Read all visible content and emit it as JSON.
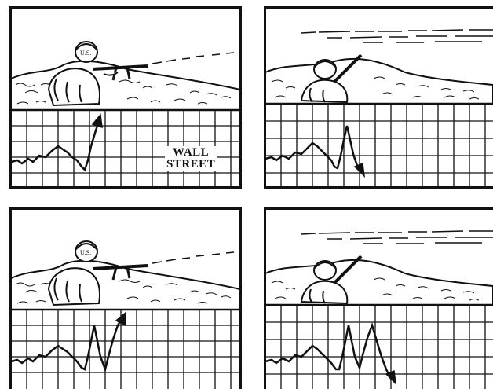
{
  "comic": {
    "panel_count": 4,
    "caption": {
      "line1": "WALL",
      "line2": "STREET"
    },
    "colors": {
      "ink": "#111111",
      "paper": "#ffffff"
    },
    "panels": [
      {
        "scene": "soldier-firing",
        "chart_trend": "up"
      },
      {
        "scene": "soldier-ducking",
        "chart_trend": "down"
      },
      {
        "scene": "soldier-firing",
        "chart_trend": "up"
      },
      {
        "scene": "soldier-ducking",
        "chart_trend": "down"
      }
    ]
  }
}
